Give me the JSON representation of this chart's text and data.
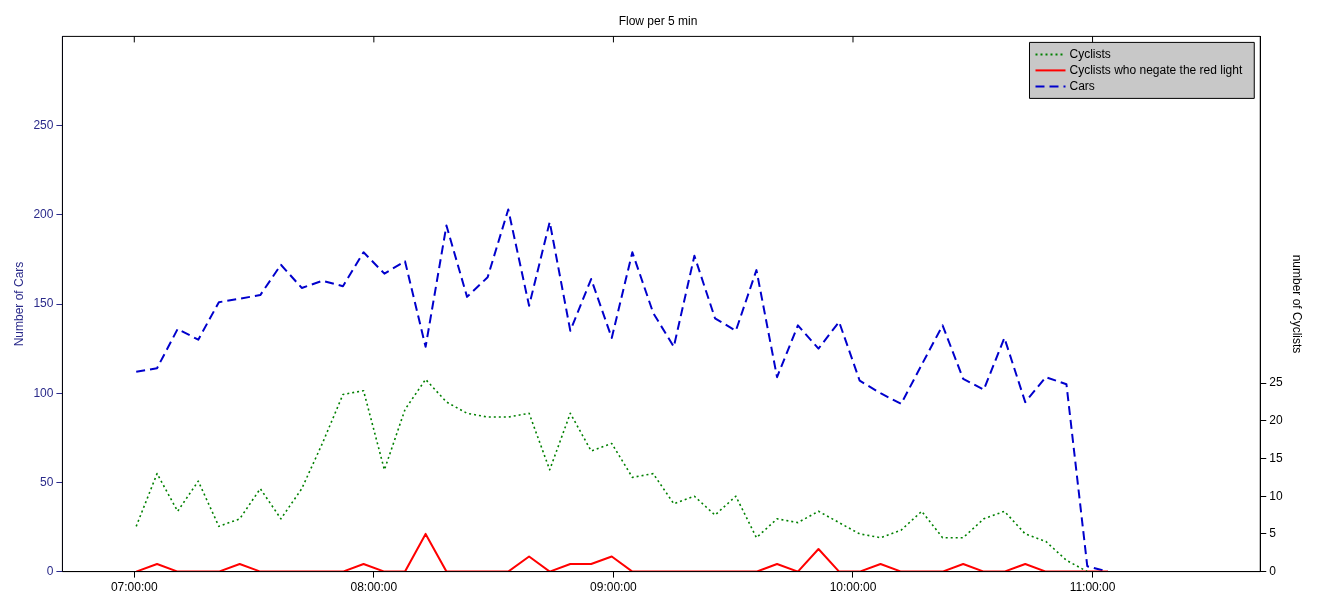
{
  "chart_data": {
    "type": "line",
    "title": "Flow per 5 min",
    "ylabel": "Number of Cars",
    "y2label": "number of Cyclists",
    "x": [
      7.008,
      7.095,
      7.181,
      7.267,
      7.353,
      7.44,
      7.526,
      7.612,
      7.699,
      7.785,
      7.871,
      7.957,
      8.044,
      8.13,
      8.216,
      8.303,
      8.389,
      8.475,
      8.561,
      8.648,
      8.734,
      8.82,
      8.907,
      8.993,
      9.079,
      9.166,
      9.252,
      9.338,
      9.424,
      9.511,
      9.597,
      9.683,
      9.77,
      9.856,
      9.942,
      10.028,
      10.115,
      10.201,
      10.287,
      10.374,
      10.46,
      10.546,
      10.632,
      10.719,
      10.805,
      10.891,
      10.978,
      11.064
    ],
    "series": [
      {
        "name": "Cyclists",
        "color": "#008000",
        "axis": "y2",
        "line_style": "dotted",
        "values": [
          6,
          13,
          8,
          12,
          6,
          7,
          11,
          7,
          11,
          17,
          23.5,
          24,
          13.5,
          21.5,
          25.5,
          22.5,
          21,
          20.5,
          20.5,
          21,
          13.5,
          21,
          16,
          17,
          12.5,
          13,
          9,
          10,
          7.5,
          10,
          4.5,
          7,
          6.5,
          8,
          6.5,
          5,
          4.5,
          5.5,
          8,
          4.5,
          4.5,
          7,
          8,
          5,
          4,
          1.5,
          0,
          null
        ]
      },
      {
        "name": "Cyclists who negate the red light",
        "color": "#ff0000",
        "axis": "y2",
        "line_style": "solid",
        "values": [
          0,
          1,
          0,
          0,
          0,
          1,
          0,
          0,
          0,
          0,
          0,
          1,
          0,
          0,
          5,
          0,
          0,
          0,
          0,
          2,
          0,
          1,
          1,
          2,
          0,
          0,
          0,
          0,
          0,
          0,
          0,
          1,
          0,
          3,
          0,
          0,
          1,
          0,
          0,
          0,
          1,
          0,
          0,
          1,
          0,
          0,
          0,
          0
        ]
      },
      {
        "name": "Cars",
        "color": "#0000cc",
        "axis": "y",
        "line_style": "dashed",
        "values": [
          112,
          114,
          136,
          130,
          151,
          153,
          155,
          172,
          159,
          163,
          160,
          179,
          167,
          174,
          126,
          194,
          154,
          165,
          203,
          149,
          196,
          135,
          164,
          131,
          179,
          145,
          126,
          177,
          142,
          135,
          169,
          109,
          138,
          125,
          140,
          107,
          100,
          94,
          116,
          138,
          108,
          102,
          131,
          95,
          109,
          105,
          3,
          0
        ]
      }
    ],
    "xlim": [
      6.7,
      11.7
    ],
    "xticks": [
      {
        "value": 7,
        "label": "07:00:00"
      },
      {
        "value": 8,
        "label": "08:00:00"
      },
      {
        "value": 9,
        "label": "09:00:00"
      },
      {
        "value": 10,
        "label": "10:00:00"
      },
      {
        "value": 11,
        "label": "11:00:00"
      }
    ],
    "ylim": [
      0,
      300
    ],
    "yticks": [
      0,
      50,
      100,
      150,
      200,
      250
    ],
    "y2lim": [
      0,
      71
    ],
    "y2ticks": [
      0,
      5,
      10,
      15,
      20,
      25
    ],
    "legend": "top right"
  }
}
